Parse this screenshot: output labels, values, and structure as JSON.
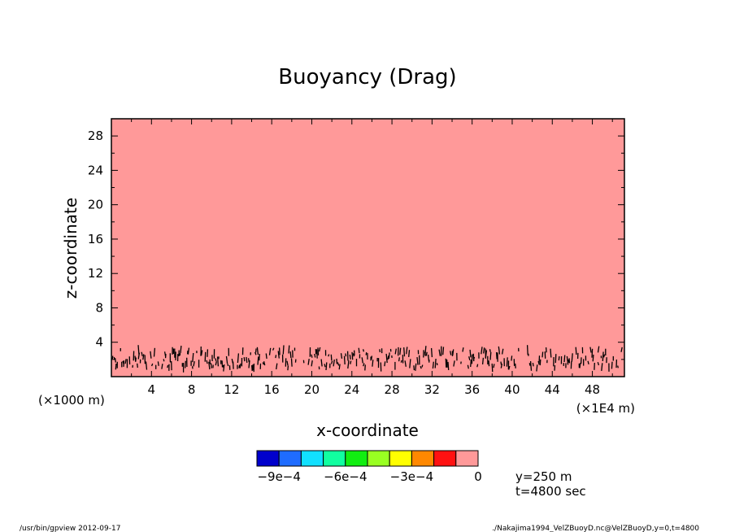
{
  "chart_data": {
    "type": "heatmap",
    "title": "Buoyancy (Drag)",
    "xlabel": "x-coordinate",
    "ylabel": "z-coordinate",
    "x_unit_left": "(×1000 m)",
    "x_unit_right": "(×1E4 m)",
    "xlim": [
      0,
      51.2
    ],
    "ylim": [
      0,
      30
    ],
    "x_ticks": [
      4,
      8,
      12,
      16,
      20,
      24,
      28,
      32,
      36,
      40,
      44,
      48
    ],
    "y_ticks": [
      4,
      8,
      12,
      16,
      20,
      24,
      28
    ],
    "field_value": 0,
    "contour_band_z": [
      1.0,
      3.2
    ],
    "colorbar": {
      "colors": [
        "#0000cc",
        "#1f6cff",
        "#11e0ff",
        "#11ffa0",
        "#11ee11",
        "#99ff22",
        "#ffff00",
        "#ff8800",
        "#ff1111",
        "#ff9999"
      ],
      "tick_labels": [
        "−9e−4",
        "−6e−4",
        "−3e−4",
        "0"
      ]
    },
    "info": [
      "y=250 m",
      "t=4800 sec"
    ]
  },
  "footer": {
    "left": "/usr/bin/gpview   2012-09-17",
    "right": "./Nakajima1994_VelZBuoyD.nc@VelZBuoyD,y=0,t=4800"
  }
}
